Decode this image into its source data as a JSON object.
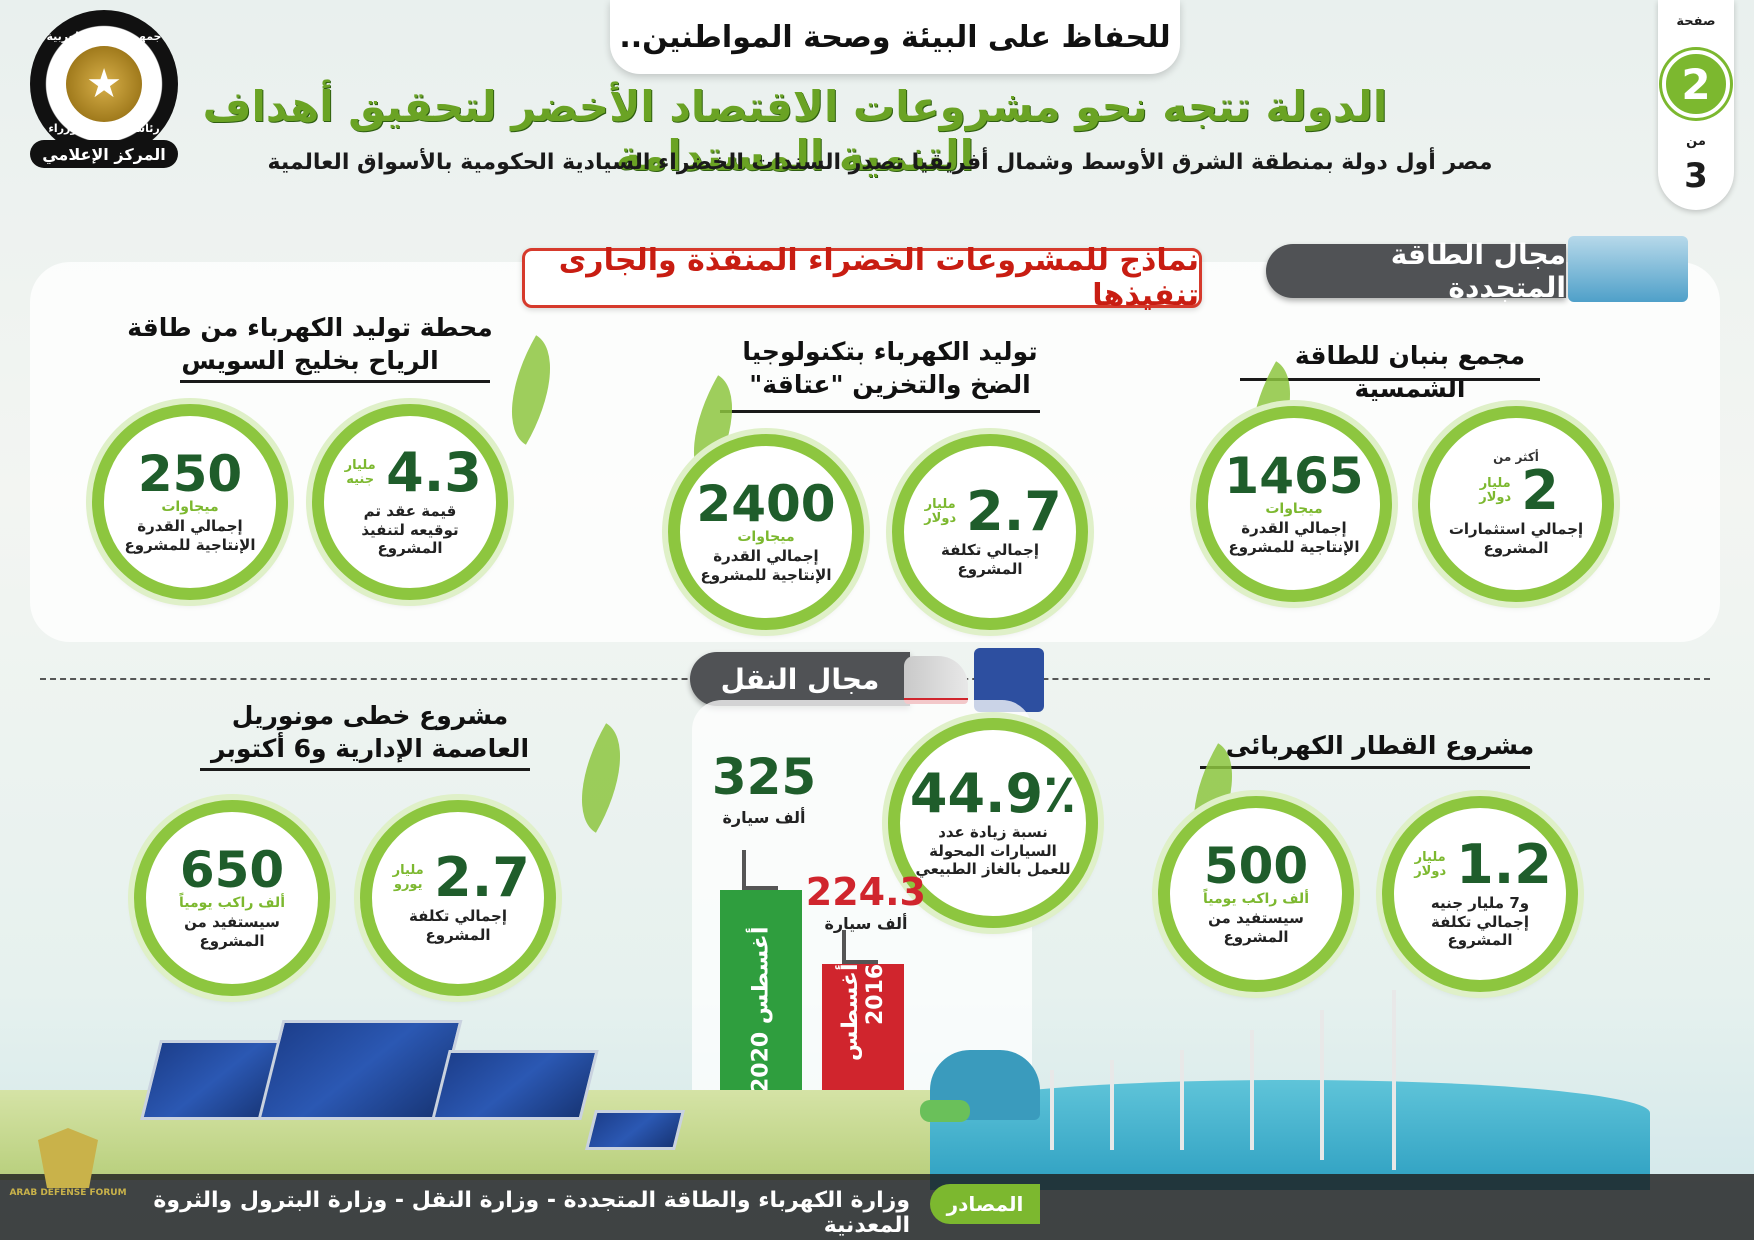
{
  "header": {
    "tagline": "للحفاظ على البيئة وصحة المواطنين..",
    "title": "الدولة تتجه نحو مشروعات الاقتصاد الأخضر لتحقيق أهداف التنمية المستدامة",
    "subtitle": "مصر أول دولة بمنطقة الشرق الأوسط وشمال أفريقيا تصدر السندات الخضراء السيادية الحكومية بالأسواق العالمية"
  },
  "page_counter": {
    "label": "صفحة",
    "current": "2",
    "of": "من",
    "total": "3"
  },
  "emblem": {
    "top_text": "جمهورية مصر العربية",
    "middle_text": "رئاسة مجلس الوزراء",
    "ribbon_text": "المركز الإعلامي",
    "icon": "eagle-emblem-icon"
  },
  "examples_title": "نماذج للمشروعات الخضراء المنفذة والجارى تنفيذها",
  "renewable": {
    "tab_label": "مجال الطاقة المتجددة",
    "projects": [
      {
        "title": "مجمع بنبان للطاقة الشمسية",
        "stats": [
          {
            "pre": "أكثر من",
            "number": "2",
            "unit": "مليار دولار",
            "desc": "إجمالي استثمارات المشروع"
          },
          {
            "number": "1465",
            "unit": "ميجاوات",
            "desc": "إجمالي القدرة الإنتاجية للمشروع"
          }
        ]
      },
      {
        "title": "توليد الكهرباء بتكنولوجيا الضخ والتخزين \"عتاقة\"",
        "stats": [
          {
            "number": "2.7",
            "unit": "مليار دولار",
            "desc": "إجمالي تكلفة المشروع"
          },
          {
            "number": "2400",
            "unit": "ميجاوات",
            "desc": "إجمالي القدرة الإنتاجية للمشروع"
          }
        ]
      },
      {
        "title": "محطة توليد الكهرباء من طاقة الرياح بخليج السويس",
        "stats": [
          {
            "number": "4.3",
            "unit": "مليار جنيه",
            "desc": "قيمة عقد تم توقيعه لتنفيذ المشروع"
          },
          {
            "number": "250",
            "unit": "ميجاوات",
            "desc": "إجمالي القدرة الإنتاجية للمشروع"
          }
        ]
      }
    ]
  },
  "transport": {
    "tab_label": "مجال النقل",
    "projects": [
      {
        "title": "مشروع القطار الكهربائى",
        "stats": [
          {
            "number": "1.2",
            "unit": "مليار دولار",
            "desc": "و7 مليار جنيه إجمالي تكلفة المشروع"
          },
          {
            "number": "500",
            "unit": "ألف راكب يومياً",
            "desc": "سيستفيد من المشروع"
          }
        ]
      },
      {
        "title": "مشروع خطى مونوريل العاصمة الإدارية و6 أكتوبر",
        "stats": [
          {
            "number": "2.7",
            "unit": "مليار يورو",
            "desc": "إجمالي تكلفة المشروع"
          },
          {
            "number": "650",
            "unit": "ألف راكب يومياً",
            "desc": "سيستفيد من المشروع"
          }
        ]
      }
    ],
    "natural_gas": {
      "percent": "44.9٪",
      "percent_desc": "نسبة زيادة عدد السيارات المحولة للعمل بالغاز الطبيعي",
      "bars": [
        {
          "label": "أغسطس 2020",
          "value": "325",
          "unit": "ألف سيارة",
          "color": "#2f9e3e",
          "numeric": 325
        },
        {
          "label": "أغسطس 2016",
          "value": "224.3",
          "unit": "ألف سيارة",
          "color": "#d0252d",
          "numeric": 224.3
        }
      ]
    }
  },
  "footer": {
    "sources_label": "المصادر",
    "sources_text": "وزارة الكهرباء والطاقة المتجددة - وزارة النقل - وزارة البترول والثروة المعدنية",
    "watermark": "ARAB DEFENSE FORUM"
  },
  "colors": {
    "accent": "#7cb82f",
    "dark_green": "#1f5d2b",
    "red": "#d0252d",
    "tab_gray": "#505255"
  }
}
